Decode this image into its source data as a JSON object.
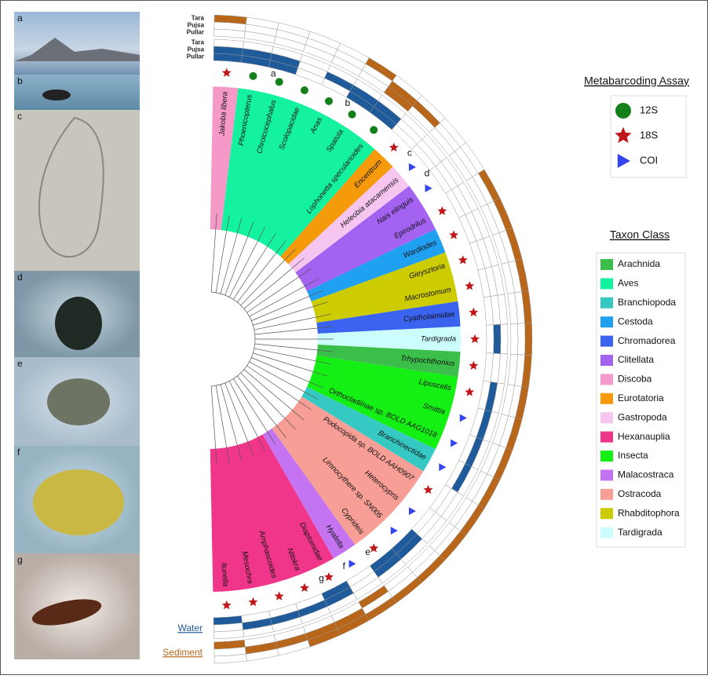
{
  "photo_panels": [
    "a",
    "b",
    "c",
    "d",
    "e",
    "f",
    "g"
  ],
  "rows": {
    "sediment": [
      "Tara",
      "Pujsa",
      "Pullar"
    ],
    "water": [
      "Tara",
      "Pujsa",
      "Pullar"
    ]
  },
  "water_label": "Water",
  "sediment_label": "Sediment",
  "tips": [
    {
      "label": "Jakoba libera",
      "class": "Discoba",
      "assay": "18S",
      "water": [
        0,
        1,
        1
      ],
      "sediment": [
        1,
        0,
        0
      ]
    },
    {
      "label": "Phoenicopterus",
      "class": "Aves",
      "assay": "12S",
      "letter": "a",
      "water": [
        0,
        1,
        1
      ],
      "sediment": [
        0,
        0,
        0
      ]
    },
    {
      "label": "Chroicocephalus",
      "class": "Aves",
      "assay": "12S",
      "water": [
        0,
        1,
        1
      ],
      "sediment": [
        0,
        0,
        0
      ]
    },
    {
      "label": "Scolopacidae",
      "class": "Aves",
      "assay": "12S",
      "water": [
        0,
        0,
        0
      ],
      "sediment": [
        0,
        0,
        0
      ]
    },
    {
      "label": "Anas",
      "class": "Aves",
      "assay": "12S",
      "letter": "b",
      "water": [
        0,
        1,
        0
      ],
      "sediment": [
        0,
        0,
        0
      ]
    },
    {
      "label": "Spatula",
      "class": "Aves",
      "assay": "12S",
      "water": [
        0,
        1,
        1
      ],
      "sediment": [
        1,
        0,
        0
      ]
    },
    {
      "label": "Lophonetta specularioides",
      "class": "Aves",
      "assay": "12S",
      "water": [
        0,
        1,
        1
      ],
      "sediment": [
        0,
        1,
        1
      ]
    },
    {
      "label": "Encentrum",
      "class": "Eurotatoria",
      "assay": "18S",
      "letter": "c",
      "water": [
        0,
        0,
        0
      ],
      "sediment": [
        0,
        1,
        0
      ]
    },
    {
      "label": "Heleobia atacamensis",
      "class": "Gastropoda",
      "assay": "COI",
      "letter": "d",
      "water": [
        0,
        0,
        0
      ],
      "sediment": [
        0,
        0,
        0
      ]
    },
    {
      "label": "Nais elinguis",
      "class": "Clitellata",
      "assay": "COI",
      "water": [
        0,
        0,
        0
      ],
      "sediment": [
        0,
        0,
        0
      ]
    },
    {
      "label": "Epirodrilus",
      "class": "Clitellata",
      "assay": "18S",
      "water": [
        0,
        0,
        0
      ],
      "sediment": [
        1,
        0,
        0
      ]
    },
    {
      "label": "Wardiodes",
      "class": "Cestoda",
      "assay": "18S",
      "water": [
        0,
        0,
        0
      ],
      "sediment": [
        1,
        0,
        0
      ]
    },
    {
      "label": "Gieysztoria",
      "class": "Rhabditophora",
      "assay": "18S",
      "water": [
        0,
        0,
        0
      ],
      "sediment": [
        1,
        0,
        0
      ]
    },
    {
      "label": "Macrostomum",
      "class": "Rhabditophora",
      "assay": "18S",
      "water": [
        0,
        0,
        0
      ],
      "sediment": [
        1,
        0,
        0
      ]
    },
    {
      "label": "Cyatholaimidae",
      "class": "Chromadorea",
      "assay": "18S",
      "water": [
        0,
        0,
        0
      ],
      "sediment": [
        1,
        0,
        0
      ]
    },
    {
      "label": "Tardigrada",
      "class": "Tardigrada",
      "assay": "18S",
      "water": [
        0,
        1,
        0
      ],
      "sediment": [
        1,
        0,
        0
      ]
    },
    {
      "label": "Trhypochthonius",
      "class": "Arachnida",
      "assay": "18S",
      "water": [
        0,
        0,
        0
      ],
      "sediment": [
        1,
        0,
        0
      ]
    },
    {
      "label": "Liposcelis",
      "class": "Insecta",
      "assay": "18S",
      "water": [
        0,
        1,
        0
      ],
      "sediment": [
        1,
        0,
        0
      ]
    },
    {
      "label": "Smittia",
      "class": "Insecta",
      "assay": "COI",
      "water": [
        0,
        1,
        0
      ],
      "sediment": [
        1,
        0,
        0
      ]
    },
    {
      "label": "Orthocladiinae sp. BOLD AAG1018",
      "class": "Insecta",
      "assay": "COI",
      "water": [
        0,
        1,
        0
      ],
      "sediment": [
        1,
        0,
        0
      ]
    },
    {
      "label": "Branchinectidae",
      "class": "Branchiopoda",
      "assay": "COI",
      "water": [
        0,
        1,
        0
      ],
      "sediment": [
        1,
        0,
        0
      ]
    },
    {
      "label": "Podocopida sp. BOLD AAH0907",
      "class": "Ostracoda",
      "assay": "18S",
      "water": [
        0,
        0,
        0
      ],
      "sediment": [
        1,
        0,
        0
      ]
    },
    {
      "label": "Heterocypris",
      "class": "Ostracoda",
      "assay": "COI",
      "water": [
        0,
        0,
        0
      ],
      "sediment": [
        1,
        0,
        0
      ]
    },
    {
      "label": "Limnocythere sp. SN005",
      "class": "Ostracoda",
      "assay": "COI",
      "water": [
        0,
        1,
        1
      ],
      "sediment": [
        1,
        0,
        0
      ]
    },
    {
      "label": "Cyprideis",
      "class": "Ostracoda",
      "assay": "18S",
      "letter": "e",
      "water": [
        0,
        1,
        1
      ],
      "sediment": [
        1,
        0,
        0
      ]
    },
    {
      "label": "Hyalella",
      "class": "Malacostraca",
      "assay": "COI",
      "letter": "f",
      "water": [
        0,
        0,
        0
      ],
      "sediment": [
        1,
        0,
        1
      ]
    },
    {
      "label": "Diaptomidae",
      "class": "Hexanauplia",
      "assay": "18S",
      "letter": "g",
      "water": [
        0,
        1,
        1
      ],
      "sediment": [
        1,
        1,
        0
      ]
    },
    {
      "label": "Nitokra",
      "class": "Hexanauplia",
      "assay": "18S",
      "water": [
        0,
        1,
        0
      ],
      "sediment": [
        1,
        1,
        0
      ]
    },
    {
      "label": "Amphascoides",
      "class": "Hexanauplia",
      "assay": "18S",
      "water": [
        0,
        1,
        0
      ],
      "sediment": [
        0,
        1,
        0
      ]
    },
    {
      "label": "Mesochra",
      "class": "Hexanauplia",
      "assay": "18S",
      "water": [
        0,
        1,
        0
      ],
      "sediment": [
        0,
        1,
        0
      ]
    },
    {
      "label": "Itunella",
      "class": "Hexanauplia",
      "assay": "18S",
      "water": [
        0,
        0,
        1
      ],
      "sediment": [
        0,
        0,
        1
      ]
    }
  ],
  "assay_legend": {
    "title": "Metabarcoding Assay",
    "items": [
      {
        "name": "12S",
        "shape": "circle",
        "color": "#13801a"
      },
      {
        "name": "18S",
        "shape": "star",
        "color": "#c01818"
      },
      {
        "name": "COI",
        "shape": "triangle",
        "color": "#3344ee"
      }
    ]
  },
  "class_legend": {
    "title": "Taxon Class",
    "items": [
      {
        "name": "Arachnida",
        "color": "#3cbf4a"
      },
      {
        "name": "Aves",
        "color": "#14f2a0"
      },
      {
        "name": "Branchiopoda",
        "color": "#36c9c4"
      },
      {
        "name": "Cestoda",
        "color": "#1fa0f0"
      },
      {
        "name": "Chromadorea",
        "color": "#3a63f0"
      },
      {
        "name": "Clitellata",
        "color": "#a462f0"
      },
      {
        "name": "Discoba",
        "color": "#f59ac8"
      },
      {
        "name": "Eurotatoria",
        "color": "#f59a0a"
      },
      {
        "name": "Gastropoda",
        "color": "#f7c6f0"
      },
      {
        "name": "Hexanauplia",
        "color": "#f0368a"
      },
      {
        "name": "Insecta",
        "color": "#14f014"
      },
      {
        "name": "Malacostraca",
        "color": "#c474f0"
      },
      {
        "name": "Ostracoda",
        "color": "#f79e96"
      },
      {
        "name": "Rhabditophora",
        "color": "#cccc00"
      },
      {
        "name": "Tardigrada",
        "color": "#ccfcfc"
      }
    ]
  }
}
